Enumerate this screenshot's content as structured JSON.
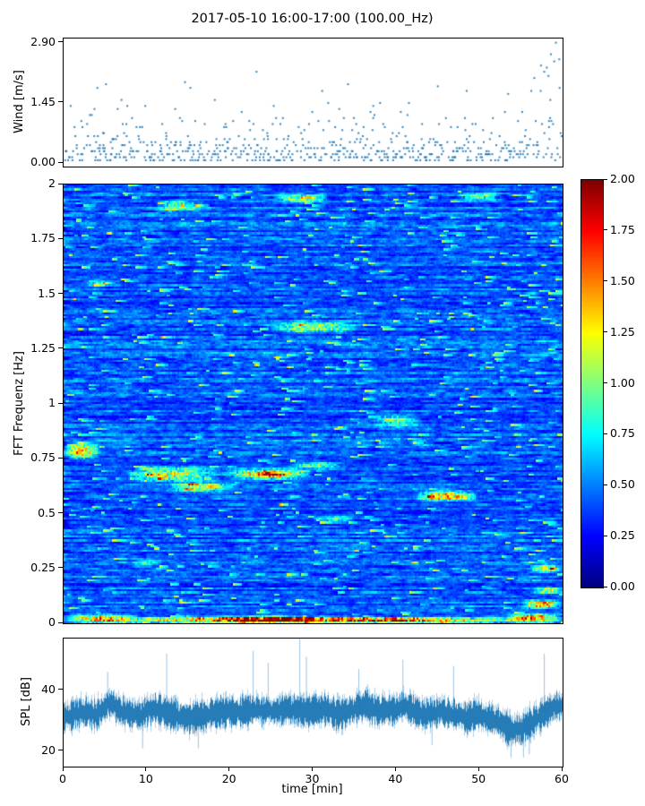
{
  "title": "2017-05-10 16:00-17:00 (100.00_Hz)",
  "xlabel": "time [min]",
  "colorbar": {
    "vmin": 0.0,
    "vmax": 2.0,
    "colormap": "jet",
    "ticks": [
      {
        "v": 2.0,
        "label": "2.00"
      },
      {
        "v": 1.75,
        "label": "1.75"
      },
      {
        "v": 1.5,
        "label": "1.50"
      },
      {
        "v": 1.25,
        "label": "1.25"
      },
      {
        "v": 1.0,
        "label": "1.00"
      },
      {
        "v": 0.75,
        "label": "0.75"
      },
      {
        "v": 0.5,
        "label": "0.50"
      },
      {
        "v": 0.25,
        "label": "0.25"
      },
      {
        "v": 0.0,
        "label": "0.00"
      }
    ]
  },
  "chart_data": [
    {
      "id": "wind",
      "type": "scatter",
      "ylabel": "Wind [m/s]",
      "xlim": [
        0,
        60
      ],
      "ylim": [
        -0.08,
        3.0
      ],
      "marker_color": "#1f77b4",
      "yticks": [
        {
          "v": 2.9,
          "label": "2.90"
        },
        {
          "v": 1.45,
          "label": "1.45"
        },
        {
          "v": 0.0,
          "label": "0.00"
        }
      ],
      "render_params": {
        "seed": 7,
        "columns": 300,
        "expo_scale": 0.34,
        "base": 0.05,
        "quant": 0.0725,
        "tail_start": 54
      },
      "outliers": [
        [
          59.2,
          2.9
        ],
        [
          58.6,
          2.62
        ],
        [
          59.6,
          2.5
        ],
        [
          59.0,
          2.45
        ],
        [
          57.4,
          2.35
        ],
        [
          58.1,
          2.3
        ],
        [
          57.8,
          2.2
        ],
        [
          23.2,
          2.2
        ],
        [
          58.3,
          2.1
        ],
        [
          56.6,
          2.05
        ],
        [
          14.6,
          1.95
        ],
        [
          5.1,
          1.9
        ],
        [
          34.2,
          1.9
        ],
        [
          45.0,
          1.85
        ]
      ]
    },
    {
      "id": "spectrogram",
      "type": "heatmap",
      "ylabel": "FFT Frequenz [Hz]",
      "xlim": [
        0,
        60
      ],
      "ylim": [
        0,
        2
      ],
      "vmin": 0.0,
      "vmax": 2.0,
      "colormap": "jet",
      "yticks": [
        {
          "v": 2,
          "label": "2"
        },
        {
          "v": 1.75,
          "label": "1.75"
        },
        {
          "v": 1.5,
          "label": "1.5"
        },
        {
          "v": 1.25,
          "label": "1.25"
        },
        {
          "v": 1,
          "label": "1"
        },
        {
          "v": 0.75,
          "label": "0.75"
        },
        {
          "v": 0.5,
          "label": "0.5"
        },
        {
          "v": 0.25,
          "label": "0.25"
        },
        {
          "v": 0,
          "label": "0"
        }
      ],
      "render_params": {
        "seed": 99,
        "cols": 280,
        "rows": 220,
        "persist": 0.72,
        "base": 0.08,
        "gain": 0.6,
        "burst_prob": 0.013
      },
      "features": [
        {
          "t": [
            0,
            60
          ],
          "f": [
            0.0,
            0.03
          ],
          "a": 1.4
        },
        {
          "t": [
            0,
            9
          ],
          "f": [
            0.0,
            0.045
          ],
          "a": 0.9
        },
        {
          "t": [
            17,
            31
          ],
          "f": [
            0.0,
            0.04
          ],
          "a": 0.7
        },
        {
          "t": [
            53,
            60
          ],
          "f": [
            0.0,
            0.05
          ],
          "a": 1.0
        },
        {
          "t": [
            55,
            60
          ],
          "f": [
            0.06,
            0.11
          ],
          "a": 1.0
        },
        {
          "t": [
            56.5,
            60
          ],
          "f": [
            0.13,
            0.17
          ],
          "a": 0.8
        },
        {
          "t": [
            56,
            60
          ],
          "f": [
            0.23,
            0.27
          ],
          "a": 0.85
        },
        {
          "t": [
            0,
            4.5
          ],
          "f": [
            0.74,
            0.83
          ],
          "a": 0.85
        },
        {
          "t": [
            7,
            19
          ],
          "f": [
            0.64,
            0.72
          ],
          "a": 0.8
        },
        {
          "t": [
            12,
            21
          ],
          "f": [
            0.59,
            0.65
          ],
          "a": 0.6
        },
        {
          "t": [
            19,
            30
          ],
          "f": [
            0.65,
            0.71
          ],
          "a": 1.0
        },
        {
          "t": [
            23,
            27
          ],
          "f": [
            0.66,
            0.7
          ],
          "a": 0.5
        },
        {
          "t": [
            27,
            34
          ],
          "f": [
            0.7,
            0.74
          ],
          "a": 0.6
        },
        {
          "t": [
            42,
            50
          ],
          "f": [
            0.55,
            0.61
          ],
          "a": 0.95
        },
        {
          "t": [
            24,
            36
          ],
          "f": [
            1.32,
            1.38
          ],
          "a": 0.6
        },
        {
          "t": [
            11,
            17
          ],
          "f": [
            1.87,
            1.93
          ],
          "a": 0.6
        },
        {
          "t": [
            25,
            32
          ],
          "f": [
            1.91,
            1.96
          ],
          "a": 0.65
        },
        {
          "t": [
            37,
            43
          ],
          "f": [
            0.89,
            0.96
          ],
          "a": 0.5
        },
        {
          "t": [
            47,
            53
          ],
          "f": [
            1.92,
            1.97
          ],
          "a": 0.5
        },
        {
          "t": [
            2,
            6
          ],
          "f": [
            1.53,
            1.57
          ],
          "a": 0.4
        },
        {
          "t": [
            30,
            35
          ],
          "f": [
            0.45,
            0.5
          ],
          "a": 0.35
        },
        {
          "t": [
            8,
            12
          ],
          "f": [
            0.25,
            0.3
          ],
          "a": 0.35
        }
      ]
    },
    {
      "id": "spl",
      "type": "line",
      "ylabel": "SPL [dB]",
      "xlim": [
        0,
        60
      ],
      "ylim": [
        15,
        57
      ],
      "line_color": "#1f77b4",
      "yticks": [
        {
          "v": 40,
          "label": "40"
        },
        {
          "v": 20,
          "label": "20"
        }
      ],
      "xticks": [
        {
          "v": 0,
          "label": "0"
        },
        {
          "v": 10,
          "label": "10"
        },
        {
          "v": 20,
          "label": "20"
        },
        {
          "v": 30,
          "label": "30"
        },
        {
          "v": 40,
          "label": "40"
        },
        {
          "v": 50,
          "label": "50"
        },
        {
          "v": 60,
          "label": "60"
        }
      ],
      "render_params": {
        "seed": 5,
        "band_halfwidth": 2.0,
        "band_jitter": 3.0
      },
      "baseline": [
        [
          0,
          31
        ],
        [
          2,
          33
        ],
        [
          4,
          32
        ],
        [
          5.5,
          36
        ],
        [
          7,
          33
        ],
        [
          9,
          32
        ],
        [
          11,
          34
        ],
        [
          13,
          32
        ],
        [
          15,
          31
        ],
        [
          17,
          32
        ],
        [
          19,
          33
        ],
        [
          21,
          33
        ],
        [
          23,
          34
        ],
        [
          25,
          33
        ],
        [
          27,
          34
        ],
        [
          29,
          33
        ],
        [
          31,
          34
        ],
        [
          33,
          32
        ],
        [
          35,
          34
        ],
        [
          36.5,
          35
        ],
        [
          38,
          33
        ],
        [
          40,
          34
        ],
        [
          41,
          35
        ],
        [
          43,
          32
        ],
        [
          45,
          33
        ],
        [
          47,
          32
        ],
        [
          48.5,
          31
        ],
        [
          50,
          32
        ],
        [
          52,
          30
        ],
        [
          53.5,
          27
        ],
        [
          55,
          27
        ],
        [
          56.5,
          30
        ],
        [
          57.5,
          32
        ],
        [
          58.5,
          34
        ],
        [
          60,
          35
        ]
      ],
      "spikes_up": [
        [
          5.3,
          46
        ],
        [
          12.4,
          52
        ],
        [
          22.8,
          53
        ],
        [
          24.6,
          49
        ],
        [
          28.4,
          57
        ],
        [
          29.2,
          51
        ],
        [
          35.5,
          47
        ],
        [
          40.8,
          50
        ],
        [
          46.9,
          48
        ],
        [
          57.8,
          52
        ]
      ],
      "spikes_down": [
        [
          9.5,
          21
        ],
        [
          16.2,
          21
        ],
        [
          44.3,
          22
        ],
        [
          53.8,
          18
        ],
        [
          55.3,
          18
        ],
        [
          56.0,
          19
        ]
      ]
    }
  ]
}
